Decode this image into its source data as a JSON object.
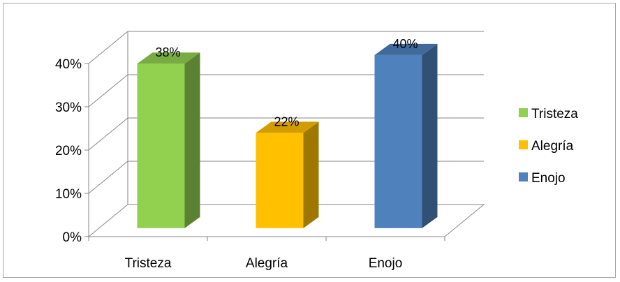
{
  "chart_data": {
    "type": "bar",
    "style": "3d-column",
    "categories": [
      "Tristeza",
      "Alegría",
      "Enojo"
    ],
    "values": [
      38,
      22,
      40
    ],
    "data_labels": [
      "38%",
      "22%",
      "40%"
    ],
    "colors": [
      "#92d050",
      "#ffc000",
      "#4f81bd"
    ],
    "ylim": [
      0,
      40
    ],
    "ytick_labels": [
      "0%",
      "10%",
      "20%",
      "30%",
      "40%"
    ],
    "grid": true,
    "legend": {
      "position": "right",
      "entries": [
        "Tristeza",
        "Alegría",
        "Enojo"
      ]
    }
  }
}
